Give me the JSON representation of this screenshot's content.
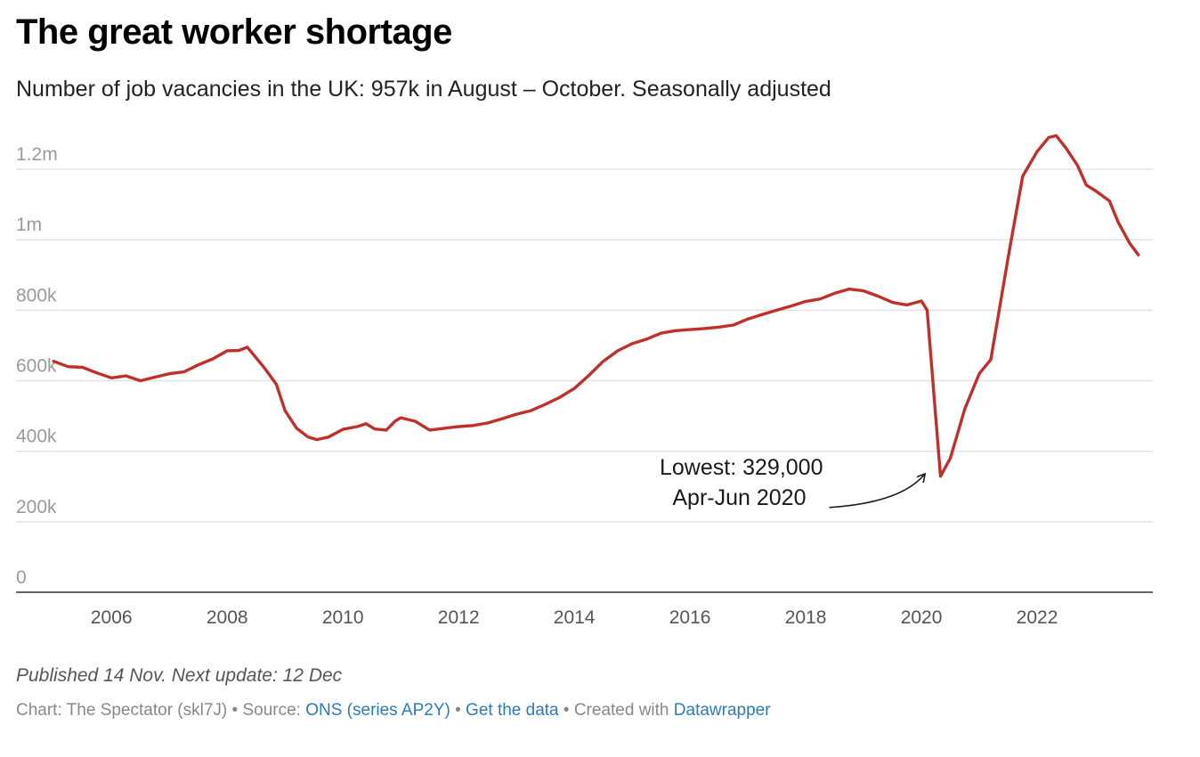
{
  "header": {
    "title": "The great worker shortage",
    "subtitle": "Number of job vacancies in the UK: 957k in August – October. Seasonally adjusted"
  },
  "footer": {
    "published": "Published 14 Nov. Next update: 12 Dec",
    "credit_prefix": "Chart: The Spectator (skl7J) •",
    "source_label": "Source:",
    "source_link": "ONS (series AP2Y)",
    "sep1": "•",
    "data_link": "Get the data",
    "sep2": "• Created with",
    "tool_link": "Datawrapper"
  },
  "colors": {
    "line": "#c0302b",
    "grid": "#e0e0e0",
    "axis": "#333333",
    "link": "#2b7bb9"
  },
  "chart_data": {
    "type": "line",
    "title": "The great worker shortage",
    "subtitle": "Number of job vacancies in the UK: 957k in August – October. Seasonally adjusted",
    "xlabel": "",
    "ylabel": "",
    "xlim": [
      2004.35,
      2024.0
    ],
    "ylim": [
      0,
      1200000
    ],
    "grid": true,
    "yticks": [
      {
        "value": 0,
        "label": "0"
      },
      {
        "value": 200000,
        "label": "200k"
      },
      {
        "value": 400000,
        "label": "400k"
      },
      {
        "value": 600000,
        "label": "600k"
      },
      {
        "value": 800000,
        "label": "800k"
      },
      {
        "value": 1000000,
        "label": "1m"
      },
      {
        "value": 1200000,
        "label": "1.2m"
      }
    ],
    "xticks": [
      {
        "value": 2006,
        "label": "2006"
      },
      {
        "value": 2008,
        "label": "2008"
      },
      {
        "value": 2010,
        "label": "2010"
      },
      {
        "value": 2012,
        "label": "2012"
      },
      {
        "value": 2014,
        "label": "2014"
      },
      {
        "value": 2016,
        "label": "2016"
      },
      {
        "value": 2018,
        "label": "2018"
      },
      {
        "value": 2020,
        "label": "2020"
      },
      {
        "value": 2022,
        "label": "2022"
      }
    ],
    "series": [
      {
        "name": "Job vacancies",
        "points": [
          [
            2005.0,
            655000
          ],
          [
            2005.25,
            640000
          ],
          [
            2005.5,
            638000
          ],
          [
            2005.75,
            622000
          ],
          [
            2006.0,
            608000
          ],
          [
            2006.25,
            614000
          ],
          [
            2006.5,
            600000
          ],
          [
            2006.75,
            610000
          ],
          [
            2007.0,
            620000
          ],
          [
            2007.25,
            625000
          ],
          [
            2007.5,
            645000
          ],
          [
            2007.75,
            662000
          ],
          [
            2008.0,
            685000
          ],
          [
            2008.2,
            686000
          ],
          [
            2008.35,
            695000
          ],
          [
            2008.5,
            665000
          ],
          [
            2008.65,
            635000
          ],
          [
            2008.85,
            590000
          ],
          [
            2009.0,
            515000
          ],
          [
            2009.2,
            465000
          ],
          [
            2009.4,
            440000
          ],
          [
            2009.55,
            433000
          ],
          [
            2009.75,
            440000
          ],
          [
            2010.0,
            462000
          ],
          [
            2010.25,
            470000
          ],
          [
            2010.4,
            478000
          ],
          [
            2010.55,
            463000
          ],
          [
            2010.75,
            460000
          ],
          [
            2010.9,
            485000
          ],
          [
            2011.0,
            495000
          ],
          [
            2011.25,
            485000
          ],
          [
            2011.5,
            460000
          ],
          [
            2011.75,
            465000
          ],
          [
            2012.0,
            470000
          ],
          [
            2012.25,
            473000
          ],
          [
            2012.5,
            480000
          ],
          [
            2012.75,
            492000
          ],
          [
            2013.0,
            505000
          ],
          [
            2013.25,
            515000
          ],
          [
            2013.5,
            533000
          ],
          [
            2013.75,
            553000
          ],
          [
            2014.0,
            578000
          ],
          [
            2014.25,
            615000
          ],
          [
            2014.5,
            655000
          ],
          [
            2014.75,
            685000
          ],
          [
            2015.0,
            705000
          ],
          [
            2015.25,
            718000
          ],
          [
            2015.5,
            735000
          ],
          [
            2015.75,
            742000
          ],
          [
            2016.0,
            745000
          ],
          [
            2016.25,
            748000
          ],
          [
            2016.5,
            752000
          ],
          [
            2016.75,
            758000
          ],
          [
            2017.0,
            775000
          ],
          [
            2017.25,
            788000
          ],
          [
            2017.5,
            800000
          ],
          [
            2017.75,
            812000
          ],
          [
            2018.0,
            825000
          ],
          [
            2018.25,
            832000
          ],
          [
            2018.5,
            848000
          ],
          [
            2018.75,
            860000
          ],
          [
            2019.0,
            855000
          ],
          [
            2019.25,
            840000
          ],
          [
            2019.5,
            822000
          ],
          [
            2019.75,
            815000
          ],
          [
            2020.0,
            826000
          ],
          [
            2020.1,
            800000
          ],
          [
            2020.33,
            329000
          ],
          [
            2020.5,
            380000
          ],
          [
            2020.75,
            520000
          ],
          [
            2021.0,
            620000
          ],
          [
            2021.2,
            660000
          ],
          [
            2021.5,
            950000
          ],
          [
            2021.75,
            1180000
          ],
          [
            2022.0,
            1250000
          ],
          [
            2022.2,
            1290000
          ],
          [
            2022.33,
            1295000
          ],
          [
            2022.5,
            1260000
          ],
          [
            2022.7,
            1210000
          ],
          [
            2022.85,
            1155000
          ],
          [
            2023.0,
            1140000
          ],
          [
            2023.25,
            1110000
          ],
          [
            2023.4,
            1050000
          ],
          [
            2023.6,
            990000
          ],
          [
            2023.75,
            957000
          ]
        ]
      }
    ],
    "annotations": [
      {
        "text_line1": "Lowest: 329,000",
        "text_line2": "Apr-Jun 2020",
        "x": 2020.33,
        "y": 329000
      }
    ]
  }
}
